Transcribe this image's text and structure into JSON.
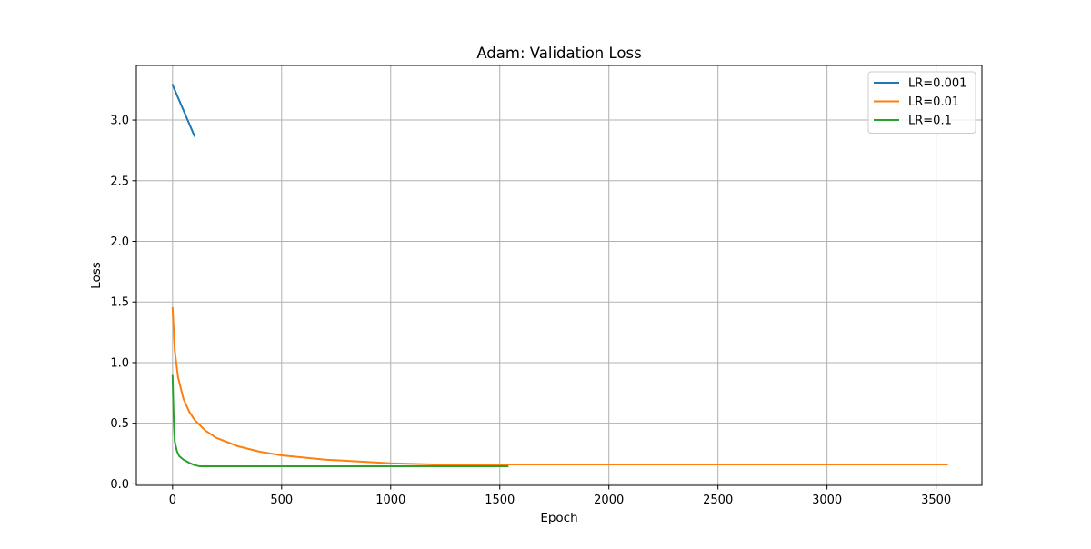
{
  "chart_data": {
    "type": "line",
    "title": "Adam: Validation Loss",
    "xlabel": "Epoch",
    "ylabel": "Loss",
    "xlim": [
      -166,
      3710
    ],
    "ylim": [
      -0.012,
      3.45
    ],
    "xticks": [
      0,
      500,
      1000,
      1500,
      2000,
      2500,
      3000,
      3500
    ],
    "yticks": [
      0.0,
      0.5,
      1.0,
      1.5,
      2.0,
      2.5,
      3.0
    ],
    "xtick_labels": [
      "0",
      "500",
      "1000",
      "1500",
      "2000",
      "2500",
      "3000",
      "3500"
    ],
    "ytick_labels": [
      "0.0",
      "0.5",
      "1.0",
      "1.5",
      "2.0",
      "2.5",
      "3.0"
    ],
    "grid": true,
    "legend": "top-right",
    "series": [
      {
        "name": "LR=0.001",
        "color": "#1f77b4",
        "x": [
          0,
          50,
          100
        ],
        "y": [
          3.29,
          3.08,
          2.87
        ]
      },
      {
        "name": "LR=0.01",
        "color": "#ff7f0e",
        "x": [
          0,
          10,
          25,
          50,
          75,
          100,
          150,
          200,
          300,
          400,
          500,
          700,
          900,
          1000,
          1200,
          1500,
          2000,
          2500,
          3000,
          3550
        ],
        "y": [
          1.45,
          1.1,
          0.88,
          0.7,
          0.6,
          0.53,
          0.44,
          0.38,
          0.31,
          0.265,
          0.235,
          0.2,
          0.18,
          0.17,
          0.16,
          0.16,
          0.16,
          0.16,
          0.16,
          0.16
        ]
      },
      {
        "name": "LR=0.1",
        "color": "#2ca02c",
        "x": [
          0,
          5,
          10,
          20,
          30,
          50,
          75,
          100,
          125,
          200,
          500,
          1000,
          1536
        ],
        "y": [
          0.89,
          0.55,
          0.35,
          0.27,
          0.23,
          0.2,
          0.175,
          0.155,
          0.145,
          0.145,
          0.145,
          0.145,
          0.145
        ]
      }
    ]
  }
}
